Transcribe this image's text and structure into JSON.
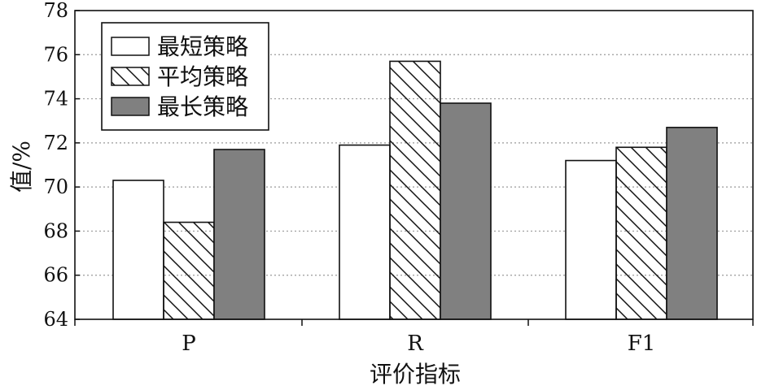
{
  "chart_data": {
    "type": "bar",
    "categories": [
      "P",
      "R",
      "F1"
    ],
    "series": [
      {
        "name": "最短策略",
        "values": [
          70.3,
          71.9,
          71.2
        ],
        "fill": "#ffffff",
        "pattern": "none"
      },
      {
        "name": "平均策略",
        "values": [
          68.4,
          75.7,
          71.8
        ],
        "fill": "#ffffff",
        "pattern": "diagonal-hatch"
      },
      {
        "name": "最长策略",
        "values": [
          71.7,
          73.8,
          72.7
        ],
        "fill": "#808080",
        "pattern": "none"
      }
    ],
    "xlabel": "评价指标",
    "ylabel": "值/%",
    "ylim": [
      64,
      78
    ],
    "yticks": [
      64,
      66,
      68,
      70,
      72,
      74,
      76,
      78
    ],
    "grid": "horizontal-dotted",
    "legend": "top-left",
    "colors": {
      "edge": "#111111",
      "grid": "#9a9a9a",
      "dark_bar": "#808080",
      "light_bar": "#ffffff"
    }
  }
}
